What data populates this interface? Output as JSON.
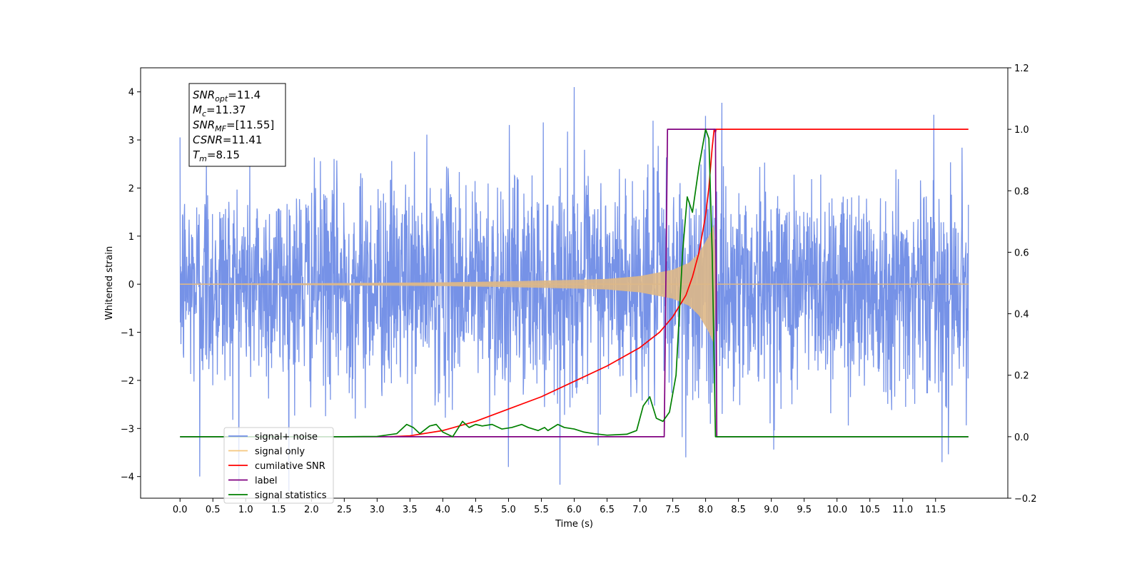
{
  "chart_data": {
    "type": "line",
    "xlabel": "Time (s)",
    "ylabel_left": "Whitened strain",
    "ylabel_right": "",
    "xlim": [
      -0.6,
      12.6
    ],
    "ylim_left": [
      -4.45,
      4.5
    ],
    "ylim_right": [
      -0.2,
      1.2
    ],
    "x_ticks": [
      0.0,
      0.5,
      1.0,
      1.5,
      2.0,
      2.5,
      3.0,
      3.5,
      4.0,
      4.5,
      5.0,
      5.5,
      6.0,
      6.5,
      7.0,
      7.5,
      8.0,
      8.5,
      9.0,
      9.5,
      10.0,
      10.5,
      11.0,
      11.5
    ],
    "x_tick_labels": [
      "0.0",
      "0.5",
      "1.0",
      "1.5",
      "2.0",
      "2.5",
      "3.0",
      "3.5",
      "4.0",
      "4.5",
      "5.0",
      "5.5",
      "6.0",
      "6.5",
      "7.0",
      "7.5",
      "8.0",
      "8.5",
      "9.0",
      "9.5",
      "10.0",
      "10.5",
      "11.0",
      "11.5"
    ],
    "y_left_ticks": [
      -4,
      -3,
      -2,
      -1,
      0,
      1,
      2,
      3,
      4
    ],
    "y_left_tick_labels": [
      "−4",
      "−3",
      "−2",
      "−1",
      "0",
      "1",
      "2",
      "3",
      "4"
    ],
    "y_right_ticks": [
      -0.2,
      0.0,
      0.2,
      0.4,
      0.6,
      0.8,
      1.0,
      1.2
    ],
    "y_right_tick_labels": [
      "−0.2",
      "0.0",
      "0.2",
      "0.4",
      "0.6",
      "0.8",
      "1.0",
      "1.2"
    ],
    "annotation": {
      "lines": [
        {
          "base": "SNR",
          "sub": "opt",
          "value": "=11.4"
        },
        {
          "base": "M",
          "sub": "c",
          "value": "=11.37"
        },
        {
          "base": "SNR",
          "sub": "MF",
          "value": "=[11.55]"
        },
        {
          "base": "CSNR",
          "sub": "",
          "value": "=11.41"
        },
        {
          "base": "T",
          "sub": "m",
          "value": "=8.15"
        }
      ]
    },
    "legend": {
      "placement": "lower-left",
      "entries": [
        {
          "label": "signal+ noise",
          "color": "#6f8ce6"
        },
        {
          "label": "signal only",
          "color": "#f5c77e"
        },
        {
          "label": "cumilative SNR",
          "color": "#ff0000"
        },
        {
          "label": "label",
          "color": "#800080"
        },
        {
          "label": "signal statistics",
          "color": "#008000"
        }
      ]
    },
    "series": [
      {
        "name": "signal+ noise",
        "axis": "left",
        "color": "#6f8ce6",
        "x_range": [
          0.0,
          12.0
        ],
        "noise_std": 1.1,
        "notable_peaks": [
          {
            "x": 6.0,
            "y": 4.1
          },
          {
            "x": 11.6,
            "y": 3.8
          },
          {
            "x": 7.2,
            "y": 3.4
          },
          {
            "x": 8.0,
            "y": 3.5
          },
          {
            "x": 0.3,
            "y": -4.0
          },
          {
            "x": 5.0,
            "y": -3.8
          },
          {
            "x": 11.6,
            "y": -3.7
          },
          {
            "x": 7.7,
            "y": -3.6
          },
          {
            "x": 0.4,
            "y": 2.6
          }
        ]
      },
      {
        "name": "signal only",
        "axis": "left",
        "color": "#deb887",
        "x_range": [
          0.0,
          12.0
        ],
        "merger_time": 8.15,
        "envelope": [
          [
            0.0,
            0.01
          ],
          [
            2.0,
            0.02
          ],
          [
            4.0,
            0.04
          ],
          [
            5.0,
            0.06
          ],
          [
            6.0,
            0.09
          ],
          [
            6.5,
            0.11
          ],
          [
            7.0,
            0.17
          ],
          [
            7.5,
            0.3
          ],
          [
            7.75,
            0.45
          ],
          [
            7.9,
            0.65
          ],
          [
            8.05,
            1.0
          ],
          [
            8.13,
            1.25
          ],
          [
            8.16,
            0.0
          ]
        ]
      },
      {
        "name": "cumilative SNR",
        "axis": "right",
        "color": "#ff0000",
        "points": [
          [
            3.2,
            0.0
          ],
          [
            3.5,
            0.003
          ],
          [
            4.0,
            0.02
          ],
          [
            4.5,
            0.05
          ],
          [
            5.0,
            0.09
          ],
          [
            5.5,
            0.13
          ],
          [
            6.0,
            0.18
          ],
          [
            6.5,
            0.23
          ],
          [
            7.0,
            0.29
          ],
          [
            7.3,
            0.34
          ],
          [
            7.5,
            0.39
          ],
          [
            7.7,
            0.46
          ],
          [
            7.8,
            0.52
          ],
          [
            7.9,
            0.6
          ],
          [
            8.0,
            0.72
          ],
          [
            8.05,
            0.81
          ],
          [
            8.1,
            0.94
          ],
          [
            8.13,
            1.0
          ],
          [
            8.15,
            0.99
          ],
          [
            8.16,
            1.0
          ],
          [
            12.0,
            1.0
          ]
        ]
      },
      {
        "name": "label",
        "axis": "right",
        "color": "#800080",
        "points": [
          [
            0.0,
            0.0
          ],
          [
            7.37,
            0.0
          ],
          [
            7.42,
            1.0
          ],
          [
            8.15,
            1.0
          ],
          [
            8.17,
            0.0
          ],
          [
            12.0,
            0.0
          ]
        ]
      },
      {
        "name": "signal statistics",
        "axis": "right",
        "color": "#008000",
        "points": [
          [
            0.0,
            0.0
          ],
          [
            2.5,
            0.0
          ],
          [
            3.0,
            0.001
          ],
          [
            3.3,
            0.01
          ],
          [
            3.45,
            0.04
          ],
          [
            3.55,
            0.03
          ],
          [
            3.65,
            0.01
          ],
          [
            3.8,
            0.035
          ],
          [
            3.9,
            0.04
          ],
          [
            4.0,
            0.015
          ],
          [
            4.15,
            0.0
          ],
          [
            4.3,
            0.05
          ],
          [
            4.4,
            0.03
          ],
          [
            4.5,
            0.04
          ],
          [
            4.6,
            0.035
          ],
          [
            4.75,
            0.04
          ],
          [
            4.9,
            0.025
          ],
          [
            5.05,
            0.03
          ],
          [
            5.2,
            0.04
          ],
          [
            5.3,
            0.03
          ],
          [
            5.45,
            0.02
          ],
          [
            5.55,
            0.03
          ],
          [
            5.6,
            0.02
          ],
          [
            5.75,
            0.04
          ],
          [
            5.85,
            0.03
          ],
          [
            6.0,
            0.025
          ],
          [
            6.15,
            0.015
          ],
          [
            6.3,
            0.01
          ],
          [
            6.5,
            0.005
          ],
          [
            6.8,
            0.008
          ],
          [
            6.95,
            0.02
          ],
          [
            7.05,
            0.1
          ],
          [
            7.15,
            0.13
          ],
          [
            7.25,
            0.06
          ],
          [
            7.35,
            0.05
          ],
          [
            7.45,
            0.08
          ],
          [
            7.55,
            0.2
          ],
          [
            7.65,
            0.6
          ],
          [
            7.72,
            0.78
          ],
          [
            7.8,
            0.73
          ],
          [
            7.9,
            0.88
          ],
          [
            8.0,
            1.0
          ],
          [
            8.05,
            0.97
          ],
          [
            8.1,
            0.6
          ],
          [
            8.15,
            0.0
          ],
          [
            12.0,
            0.0
          ]
        ]
      }
    ]
  }
}
